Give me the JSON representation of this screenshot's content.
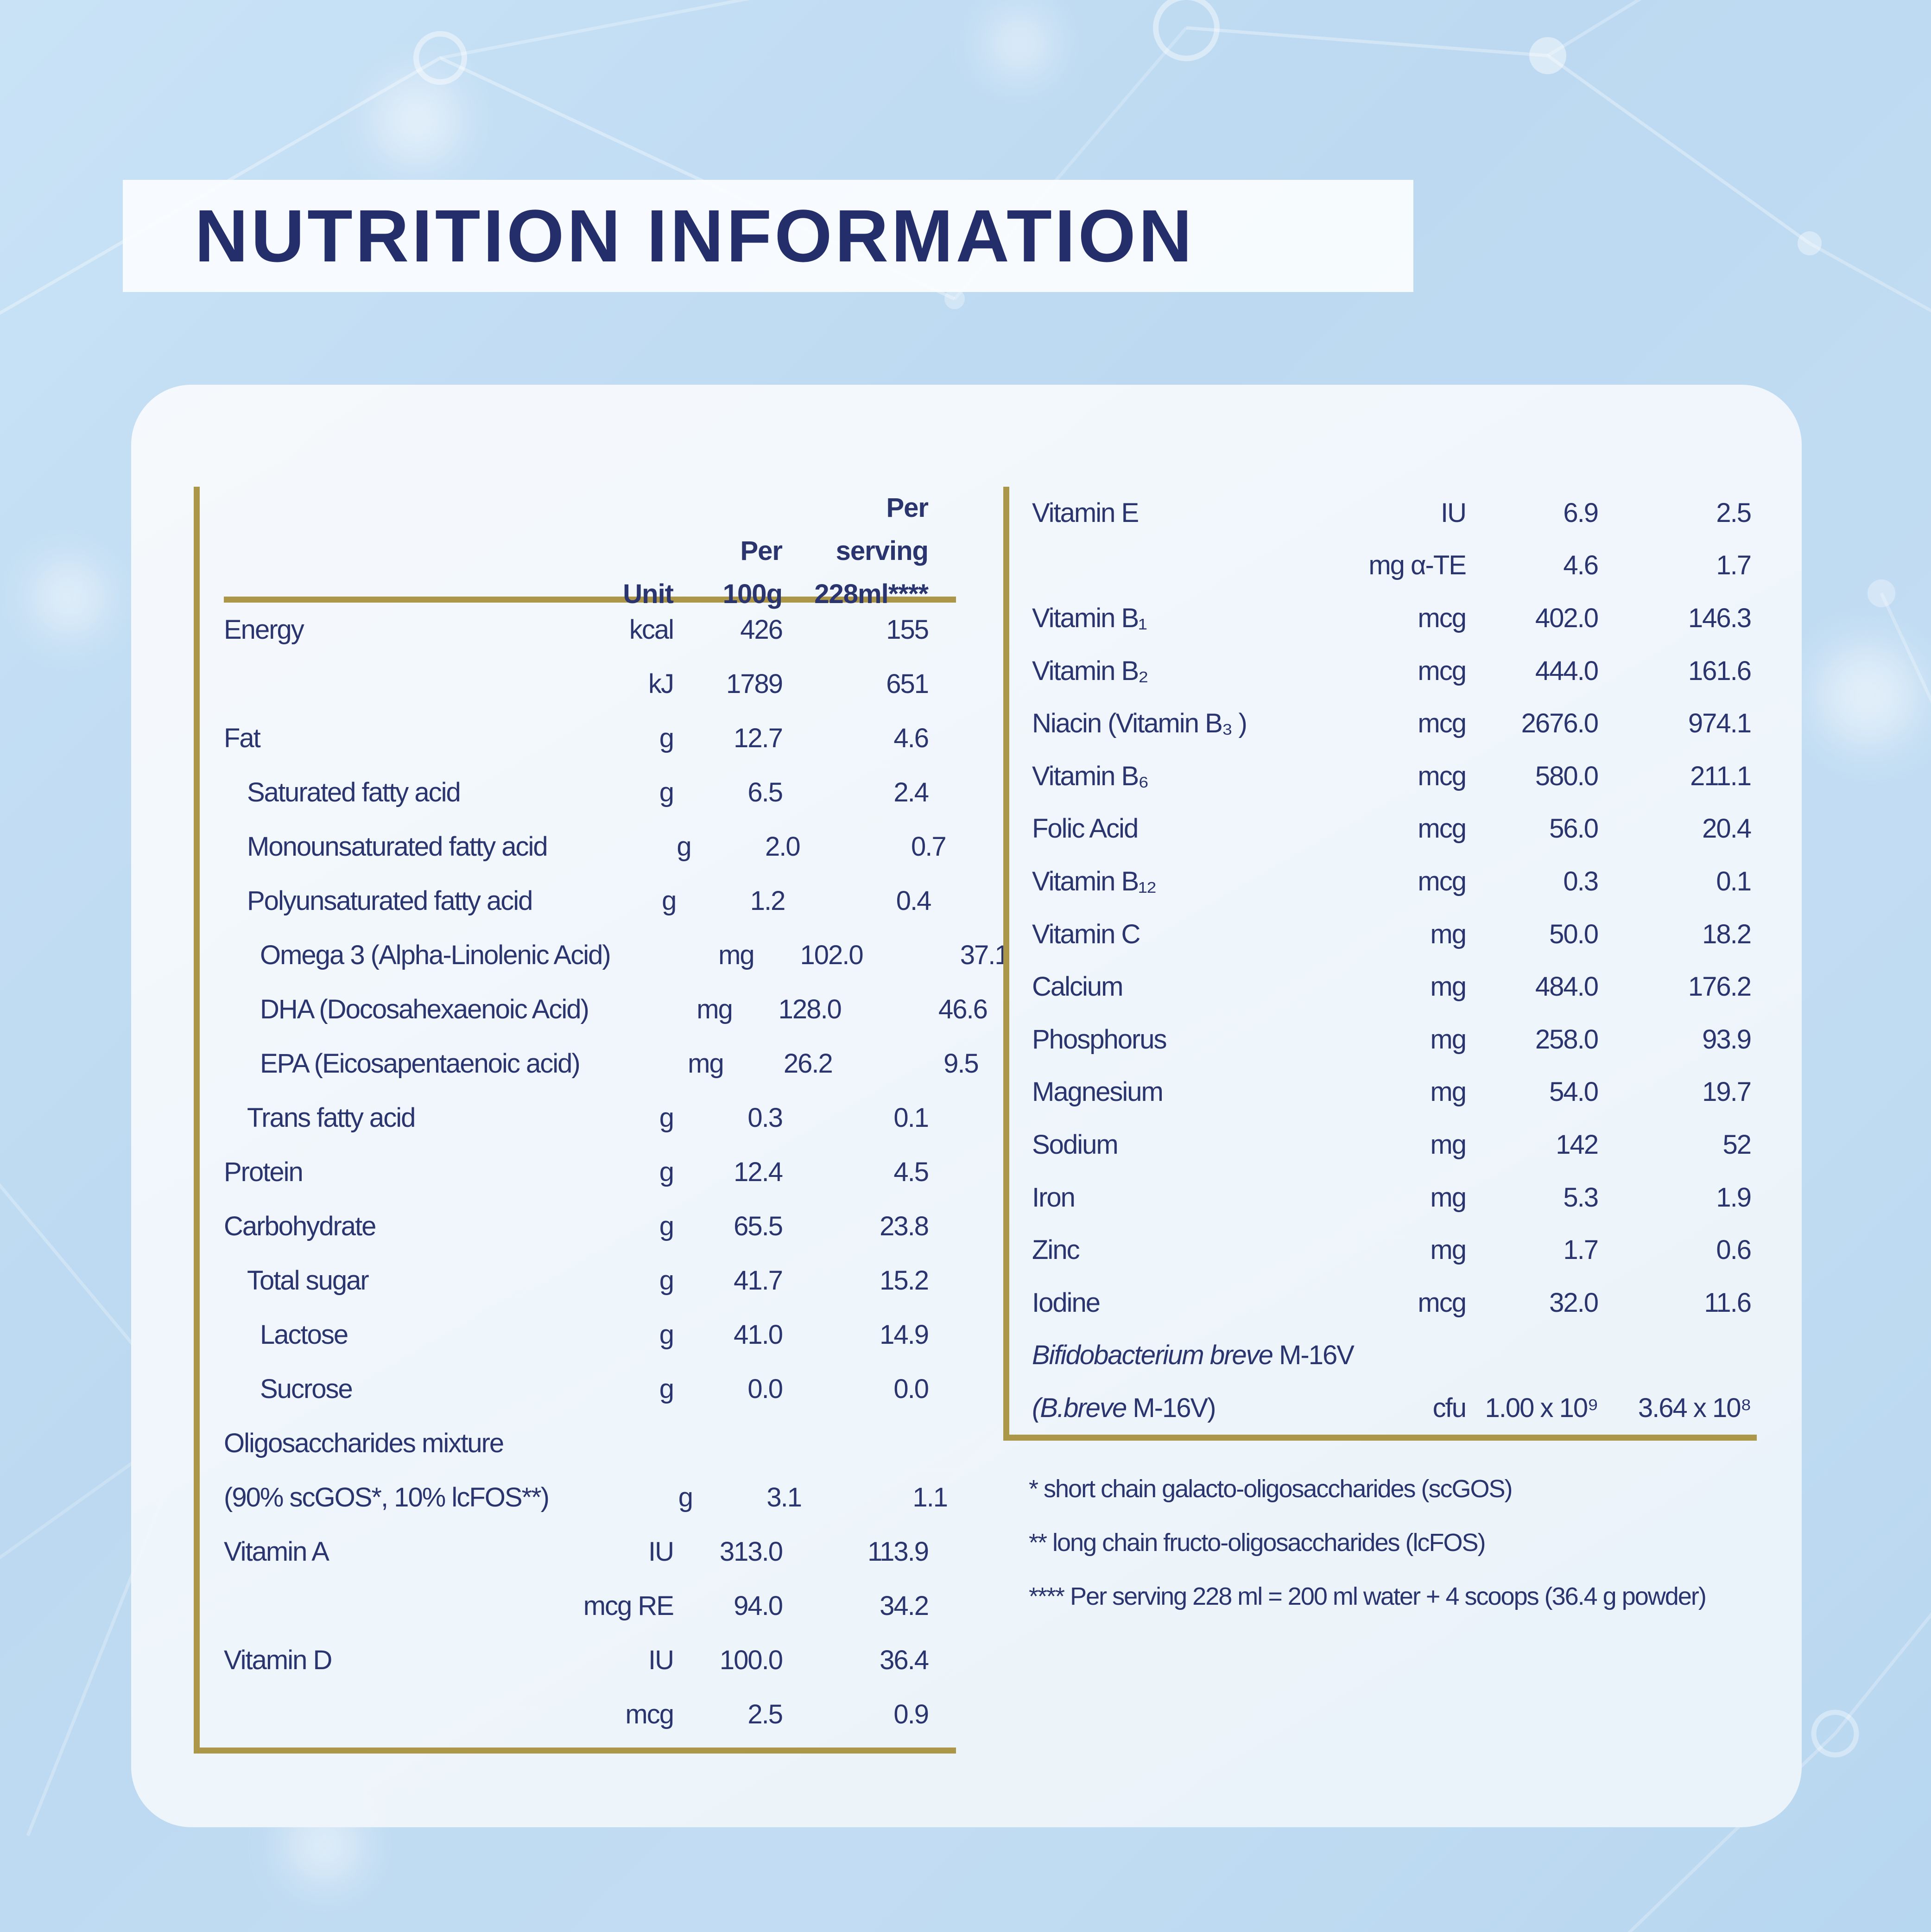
{
  "title": "NUTRITION INFORMATION",
  "colors": {
    "navy_text": "#242e6b",
    "gold_rule": "#ac9647",
    "background_blue": "#bcd9f1",
    "card_white": "#f2f7fc",
    "banner_white": "#fbfdff"
  },
  "left_table": {
    "header": {
      "unit": "Unit",
      "per100_line1": "Per",
      "per100_line2": "100g",
      "serving_line1": "Per",
      "serving_line2": "serving",
      "serving_line3": "228ml****"
    },
    "rows": [
      {
        "label": "Energy",
        "indent": 0,
        "unit": "kcal",
        "per100": "426",
        "serving": "155"
      },
      {
        "label": "",
        "indent": 0,
        "unit": "kJ",
        "per100": "1789",
        "serving": "651"
      },
      {
        "label": "Fat",
        "indent": 0,
        "unit": "g",
        "per100": "12.7",
        "serving": "4.6"
      },
      {
        "label": "Saturated fatty acid",
        "indent": 1,
        "unit": "g",
        "per100": "6.5",
        "serving": "2.4"
      },
      {
        "label": "Monounsaturated fatty acid",
        "indent": 1,
        "unit": "g",
        "per100": "2.0",
        "serving": "0.7"
      },
      {
        "label": "Polyunsaturated fatty acid",
        "indent": 1,
        "unit": "g",
        "per100": "1.2",
        "serving": "0.4"
      },
      {
        "label": "Omega 3 (Alpha-Linolenic Acid)",
        "indent": 2,
        "unit": "mg",
        "per100": "102.0",
        "serving": "37.1"
      },
      {
        "label": "DHA (Docosahexaenoic Acid)",
        "indent": 2,
        "unit": "mg",
        "per100": "128.0",
        "serving": "46.6"
      },
      {
        "label": "EPA (Eicosapentaenoic acid)",
        "indent": 2,
        "unit": "mg",
        "per100": "26.2",
        "serving": "9.5"
      },
      {
        "label": "Trans fatty acid",
        "indent": 1,
        "unit": "g",
        "per100": "0.3",
        "serving": "0.1"
      },
      {
        "label": "Protein",
        "indent": 0,
        "unit": "g",
        "per100": "12.4",
        "serving": "4.5"
      },
      {
        "label": "Carbohydrate",
        "indent": 0,
        "unit": "g",
        "per100": "65.5",
        "serving": "23.8"
      },
      {
        "label": "Total sugar",
        "indent": 1,
        "unit": "g",
        "per100": "41.7",
        "serving": "15.2"
      },
      {
        "label": "Lactose",
        "indent": 2,
        "unit": "g",
        "per100": "41.0",
        "serving": "14.9"
      },
      {
        "label": "Sucrose",
        "indent": 2,
        "unit": "g",
        "per100": "0.0",
        "serving": "0.0"
      },
      {
        "label": "Oligosaccharides mixture",
        "indent": 0,
        "unit": "",
        "per100": "",
        "serving": ""
      },
      {
        "label": "(90% scGOS*, 10% lcFOS**)",
        "indent": 0,
        "unit": "g",
        "per100": "3.1",
        "serving": "1.1"
      },
      {
        "label": "Vitamin A",
        "indent": 0,
        "unit": "IU",
        "per100": "313.0",
        "serving": "113.9"
      },
      {
        "label": "",
        "indent": 0,
        "unit": "mcg RE",
        "per100": "94.0",
        "serving": "34.2"
      },
      {
        "label": "Vitamin D",
        "indent": 0,
        "unit": "IU",
        "per100": "100.0",
        "serving": "36.4"
      },
      {
        "label": "",
        "indent": 0,
        "unit": "mcg",
        "per100": "2.5",
        "serving": "0.9"
      }
    ]
  },
  "right_table": {
    "rows": [
      {
        "label": "Vitamin E",
        "unit": "IU",
        "per100": "6.9",
        "serving": "2.5"
      },
      {
        "label": "",
        "unit": "mg α-TE",
        "per100": "4.6",
        "serving": "1.7"
      },
      {
        "label": "Vitamin B₁",
        "unit": "mcg",
        "per100": "402.0",
        "serving": "146.3"
      },
      {
        "label": "Vitamin B₂",
        "unit": "mcg",
        "per100": "444.0",
        "serving": "161.6"
      },
      {
        "label": "Niacin (Vitamin B₃ )",
        "unit": "mcg",
        "per100": "2676.0",
        "serving": "974.1"
      },
      {
        "label": "Vitamin B₆",
        "unit": "mcg",
        "per100": "580.0",
        "serving": "211.1"
      },
      {
        "label": "Folic Acid",
        "unit": "mcg",
        "per100": "56.0",
        "serving": "20.4"
      },
      {
        "label": "Vitamin B₁₂",
        "unit": "mcg",
        "per100": "0.3",
        "serving": "0.1"
      },
      {
        "label": "Vitamin C",
        "unit": "mg",
        "per100": "50.0",
        "serving": "18.2"
      },
      {
        "label": "Calcium",
        "unit": "mg",
        "per100": "484.0",
        "serving": "176.2"
      },
      {
        "label": "Phosphorus",
        "unit": "mg",
        "per100": "258.0",
        "serving": "93.9"
      },
      {
        "label": "Magnesium",
        "unit": "mg",
        "per100": "54.0",
        "serving": "19.7"
      },
      {
        "label": "Sodium",
        "unit": "mg",
        "per100": "142",
        "serving": "52"
      },
      {
        "label": "Iron",
        "unit": "mg",
        "per100": "5.3",
        "serving": "1.9"
      },
      {
        "label": "Zinc",
        "unit": "mg",
        "per100": "1.7",
        "serving": "0.6"
      },
      {
        "label": "Iodine",
        "unit": "mcg",
        "per100": "32.0",
        "serving": "11.6"
      },
      {
        "label_italic": "Bifidobacterium breve ",
        "label": "M-16V",
        "unit": "",
        "per100": "",
        "serving": ""
      },
      {
        "label_italic": "(B.breve ",
        "label": "M-16V)",
        "unit": "cfu",
        "per100": "1.00 x 10⁹",
        "serving": "3.64 x 10⁸"
      }
    ]
  },
  "footnotes": [
    "* short chain galacto-oligosaccharides (scGOS)",
    "** long chain fructo-oligosaccharides (lcFOS)",
    "**** Per serving 228 ml = 200 ml water + 4 scoops (36.4 g powder)"
  ]
}
